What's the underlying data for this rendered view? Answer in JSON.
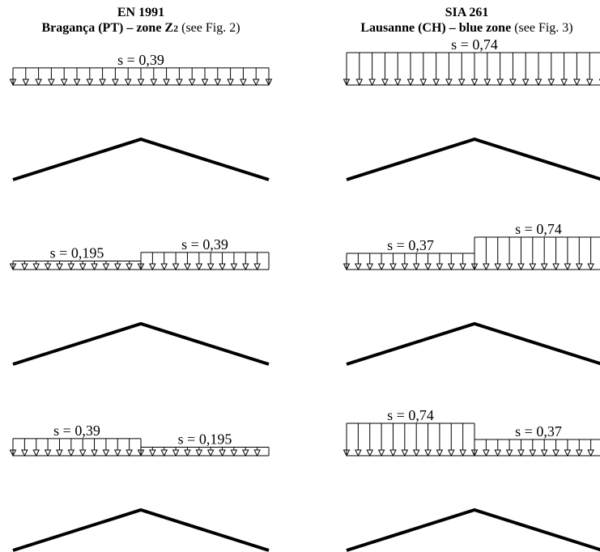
{
  "header_left": {
    "standard": "EN 1991",
    "location": "Bragança (PT)",
    "sep": " – ",
    "zone": "zone Z",
    "zone_sub": "2",
    "ref": " (see Fig. 2)"
  },
  "header_right": {
    "standard": "SIA 261",
    "location": "Lausanne (CH)",
    "sep": " – ",
    "zone": "blue zone",
    "ref": " (see Fig. 3)"
  },
  "cases": [
    {
      "left": [
        {
          "value": 0.39,
          "label": "s = 0,39"
        }
      ],
      "right": [
        {
          "value": 0.74,
          "label": "s = 0,74"
        }
      ]
    },
    {
      "left": [
        {
          "value": 0.195,
          "label": "s = 0,195"
        },
        {
          "value": 0.39,
          "label": "s = 0,39"
        }
      ],
      "right": [
        {
          "value": 0.37,
          "label": "s = 0,37"
        },
        {
          "value": 0.74,
          "label": "s = 0,74"
        }
      ]
    },
    {
      "left": [
        {
          "value": 0.39,
          "label": "s = 0,39"
        },
        {
          "value": 0.195,
          "label": "s = 0,195"
        }
      ],
      "right": [
        {
          "value": 0.74,
          "label": "s = 0,74"
        },
        {
          "value": 0.37,
          "label": "s = 0,37"
        }
      ]
    }
  ],
  "colors": {
    "line": "#000000",
    "background": "#ffffff"
  }
}
